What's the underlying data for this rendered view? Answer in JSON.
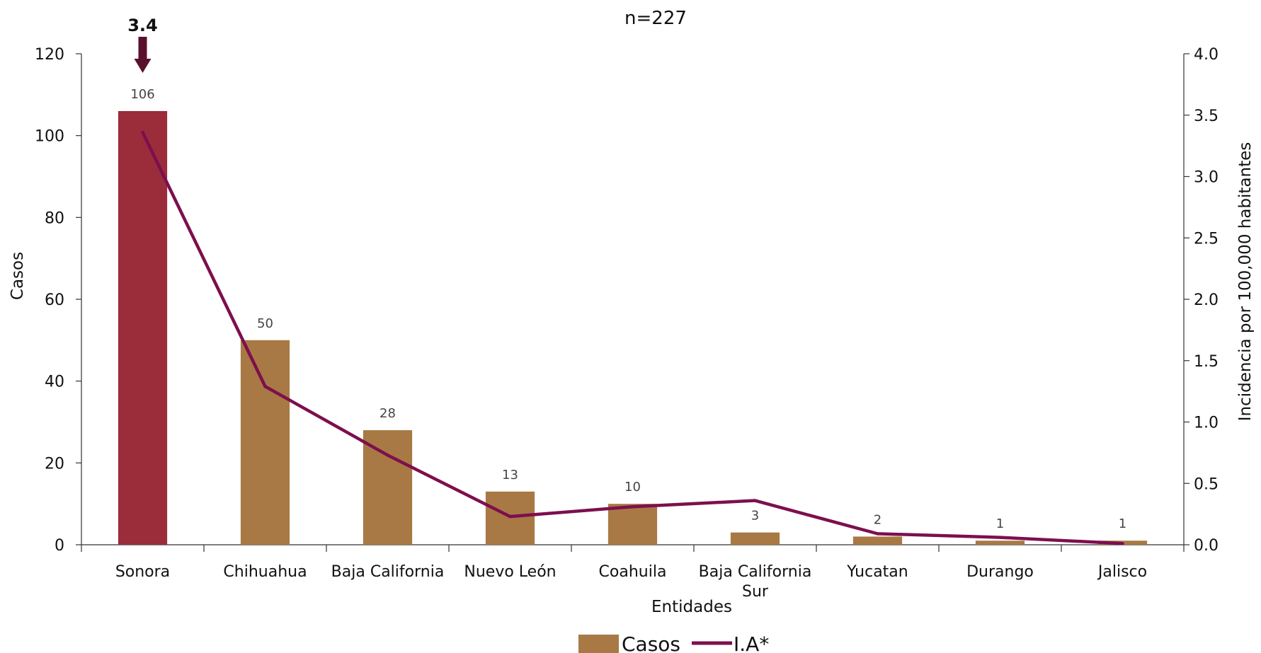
{
  "chart_data": {
    "type": "bar",
    "subtitle": "n=227",
    "xlabel": "Entidades",
    "ylabel": "Casos",
    "y2label": "Incidencia por 100,000 habitantes",
    "categories": [
      "Sonora",
      "Chihuahua",
      "Baja California",
      "Nuevo León",
      "Coahuila",
      "Baja California Sur",
      "Yucatan",
      "Durango",
      "Jalisco"
    ],
    "category_lines": [
      [
        "Sonora"
      ],
      [
        "Chihuahua"
      ],
      [
        "Baja California"
      ],
      [
        "Nuevo León"
      ],
      [
        "Coahuila"
      ],
      [
        "Baja California",
        "Sur"
      ],
      [
        "Yucatan"
      ],
      [
        "Durango"
      ],
      [
        "Jalisco"
      ]
    ],
    "series": [
      {
        "name": "Casos",
        "type": "bar",
        "axis": "left",
        "values": [
          106,
          50,
          28,
          13,
          10,
          3,
          2,
          1,
          1
        ],
        "color": "#A87944",
        "highlight_index": 0,
        "highlight_color": "#9B2C3A",
        "data_labels": [
          "106",
          "50",
          "28",
          "13",
          "10",
          "3",
          "2",
          "1",
          "1"
        ]
      },
      {
        "name": "I.A*",
        "type": "line",
        "axis": "right",
        "values": [
          3.36,
          1.29,
          0.73,
          0.23,
          0.31,
          0.36,
          0.09,
          0.06,
          0.01
        ],
        "color": "#7D0F4E"
      }
    ],
    "ylim": [
      0,
      120
    ],
    "yticks": [
      "0",
      "20",
      "40",
      "60",
      "80",
      "100",
      "120"
    ],
    "y2lim": [
      0,
      4
    ],
    "y2ticks": [
      "0.0",
      "0.5",
      "1.0",
      "1.5",
      "2.0",
      "2.5",
      "3.0",
      "3.5",
      "4.0"
    ],
    "annotation": {
      "text": "3.4",
      "category": "Sonora",
      "arrow_color": "#5A0F2E"
    },
    "legend": {
      "position": "bottom"
    },
    "grid": false
  }
}
